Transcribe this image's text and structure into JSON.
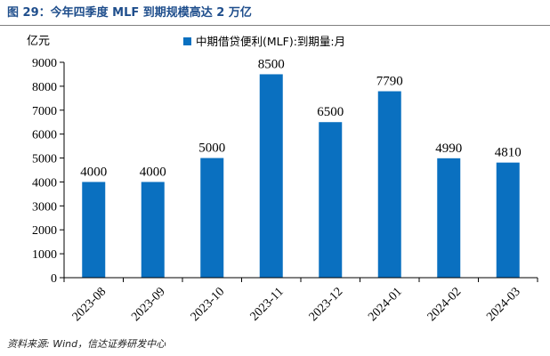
{
  "figure_title": "图 29：今年四季度 MLF 到期规模高达 2 万亿",
  "source_note": "资料来源: Wind，信达证券研发中心",
  "colors": {
    "bar": "#0a70c0",
    "title": "#1f4e8c",
    "axis": "#000000"
  },
  "chart_data": {
    "type": "bar",
    "title": "",
    "ylabel": "亿元",
    "xlabel": "",
    "categories": [
      "2023-08",
      "2023-09",
      "2023-10",
      "2023-11",
      "2023-12",
      "2024-01",
      "2024-02",
      "2024-03"
    ],
    "series": [
      {
        "name": "中期借贷便利(MLF):到期量:月",
        "values": [
          4000,
          4000,
          5000,
          8500,
          6500,
          7790,
          4990,
          4810
        ]
      }
    ],
    "ylim": [
      0,
      9000
    ],
    "yticks": [
      0,
      1000,
      2000,
      3000,
      4000,
      5000,
      6000,
      7000,
      8000,
      9000
    ],
    "grid": false,
    "legend_position": "top-center"
  }
}
